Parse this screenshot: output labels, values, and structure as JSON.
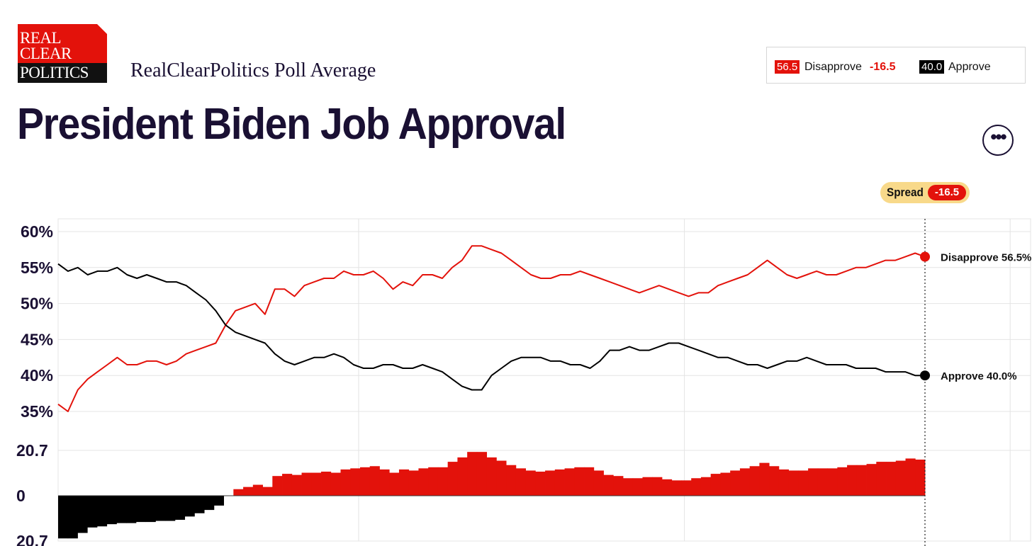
{
  "header": {
    "logo_line1": "REAL",
    "logo_line2": "CLEAR",
    "logo_line3": "POLITICS",
    "subtitle": "RealClearPolitics Poll Average",
    "title": "President Biden Job Approval",
    "more_icon": "ellipsis-icon",
    "more_label": "•••"
  },
  "legend": {
    "disapprove_value": "56.5",
    "disapprove_label": "Disapprove",
    "spread_value": "-16.5",
    "approve_value": "40.0",
    "approve_label": "Approve"
  },
  "spread_badge": {
    "label": "Spread",
    "value": "-16.5"
  },
  "colors": {
    "disapprove": "#e3120b",
    "approve": "#000000",
    "title": "#1a1033",
    "spread_badge_bg": "#f8d98a"
  },
  "chart_data": [
    {
      "type": "line",
      "title": "President Biden Job Approval",
      "ylim": [
        34,
        61
      ],
      "y_ticks": [
        {
          "value": 60,
          "label": "60%"
        },
        {
          "value": 55,
          "label": "55%"
        },
        {
          "value": 50,
          "label": "50%"
        },
        {
          "value": 45,
          "label": "45%"
        },
        {
          "value": 40,
          "label": "40%"
        },
        {
          "value": 35,
          "label": "35%"
        }
      ],
      "x_grid_fraction": [
        0.309,
        0.644,
        0.979
      ],
      "series": [
        {
          "name": "Disapprove",
          "color": "#e3120b",
          "end_label": "Disapprove 56.5%",
          "values": [
            36.0,
            35.0,
            38.0,
            39.5,
            40.5,
            41.5,
            42.5,
            41.5,
            41.5,
            42.0,
            42.0,
            41.5,
            42.0,
            43.0,
            43.5,
            44.0,
            44.5,
            47.0,
            49.0,
            49.5,
            50.0,
            48.5,
            52.0,
            52.0,
            51.0,
            52.5,
            53.0,
            53.5,
            53.5,
            54.5,
            54.0,
            54.0,
            54.5,
            53.5,
            52.0,
            53.0,
            52.5,
            54.0,
            54.0,
            53.5,
            55.0,
            56.0,
            58.0,
            58.0,
            57.5,
            57.0,
            56.0,
            55.0,
            54.0,
            53.5,
            53.5,
            54.0,
            54.0,
            54.5,
            54.0,
            53.5,
            53.0,
            52.5,
            52.0,
            51.5,
            52.0,
            52.5,
            52.0,
            51.5,
            51.0,
            51.5,
            51.5,
            52.5,
            53.0,
            53.5,
            54.0,
            55.0,
            56.0,
            55.0,
            54.0,
            53.5,
            54.0,
            54.5,
            54.0,
            54.0,
            54.5,
            55.0,
            55.0,
            55.5,
            56.0,
            56.0,
            56.5,
            57.0,
            56.5
          ]
        },
        {
          "name": "Approve",
          "color": "#000000",
          "end_label": "Approve 40.0%",
          "values": [
            55.5,
            54.5,
            55.0,
            54.0,
            54.5,
            54.5,
            55.0,
            54.0,
            53.5,
            54.0,
            53.5,
            53.0,
            53.0,
            52.5,
            51.5,
            50.5,
            49.0,
            47.0,
            46.0,
            45.5,
            45.0,
            44.5,
            43.0,
            42.0,
            41.5,
            42.0,
            42.5,
            42.5,
            43.0,
            42.5,
            41.5,
            41.0,
            41.0,
            41.5,
            41.5,
            41.0,
            41.0,
            41.5,
            41.0,
            40.5,
            39.5,
            38.5,
            38.0,
            38.0,
            40.0,
            41.0,
            42.0,
            42.5,
            42.5,
            42.5,
            42.0,
            42.0,
            41.5,
            41.5,
            41.0,
            42.0,
            43.5,
            43.5,
            44.0,
            43.5,
            43.5,
            44.0,
            44.5,
            44.5,
            44.0,
            43.5,
            43.0,
            42.5,
            42.5,
            42.0,
            41.5,
            41.5,
            41.0,
            41.5,
            42.0,
            42.0,
            42.5,
            42.0,
            41.5,
            41.5,
            41.5,
            41.0,
            41.0,
            41.0,
            40.5,
            40.5,
            40.5,
            40.0,
            40.0
          ]
        }
      ]
    },
    {
      "type": "bar",
      "title": "Spread",
      "ylim": [
        -20.7,
        20.7
      ],
      "y_ticks": [
        {
          "value": 20.7,
          "label": "20.7"
        },
        {
          "value": 0,
          "label": "0"
        },
        {
          "value": -20.7,
          "label": "20.7"
        }
      ],
      "positive_color": "#e3120b",
      "negative_color": "#000000",
      "values_description": "Disapprove minus Approve, same time axis as line chart",
      "values": [
        -19.5,
        -19.5,
        -17.0,
        -14.5,
        -14.0,
        -13.0,
        -12.5,
        -12.5,
        -12.0,
        -12.0,
        -11.5,
        -11.5,
        -11.0,
        -9.5,
        -8.0,
        -6.5,
        -4.5,
        0.0,
        3.0,
        4.0,
        5.0,
        4.0,
        9.0,
        10.0,
        9.5,
        10.5,
        10.5,
        11.0,
        10.5,
        12.0,
        12.5,
        13.0,
        13.5,
        12.0,
        10.5,
        12.0,
        11.5,
        12.5,
        13.0,
        13.0,
        15.5,
        17.5,
        20.0,
        20.0,
        17.5,
        16.0,
        14.0,
        12.5,
        11.5,
        11.0,
        11.5,
        12.0,
        12.5,
        13.0,
        13.0,
        11.5,
        9.5,
        9.0,
        8.0,
        8.0,
        8.5,
        8.5,
        7.5,
        7.0,
        7.0,
        8.0,
        8.5,
        10.0,
        10.5,
        11.5,
        12.5,
        13.5,
        15.0,
        13.5,
        12.0,
        11.5,
        11.5,
        12.5,
        12.5,
        12.5,
        13.0,
        14.0,
        14.0,
        14.5,
        15.5,
        15.5,
        16.0,
        17.0,
        16.5
      ]
    }
  ]
}
